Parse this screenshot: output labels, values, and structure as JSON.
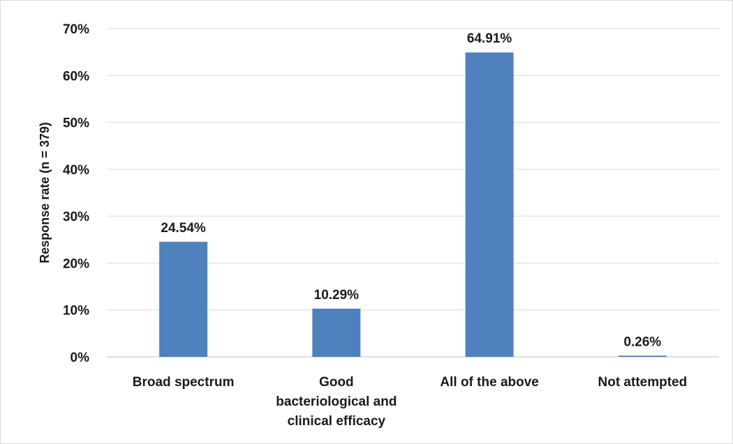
{
  "chart_data": {
    "type": "bar",
    "categories": [
      [
        "Broad spectrum"
      ],
      [
        "Good",
        "bacteriological and",
        "clinical efficacy"
      ],
      [
        "All of the above"
      ],
      [
        "Not attempted"
      ]
    ],
    "values": [
      24.54,
      10.29,
      64.91,
      0.26
    ],
    "data_labels": [
      "24.54%",
      "10.29%",
      "64.91%",
      "0.26%"
    ],
    "title": "",
    "xlabel": "",
    "ylabel": "Response rate (n = 379)",
    "ylim": [
      0,
      70
    ],
    "yticks": [
      "0%",
      "10%",
      "20%",
      "30%",
      "40%",
      "50%",
      "60%",
      "70%"
    ],
    "grid": true,
    "legend": "none",
    "bar_color": "#4f81bd",
    "grid_color": "#d9d9d9"
  }
}
